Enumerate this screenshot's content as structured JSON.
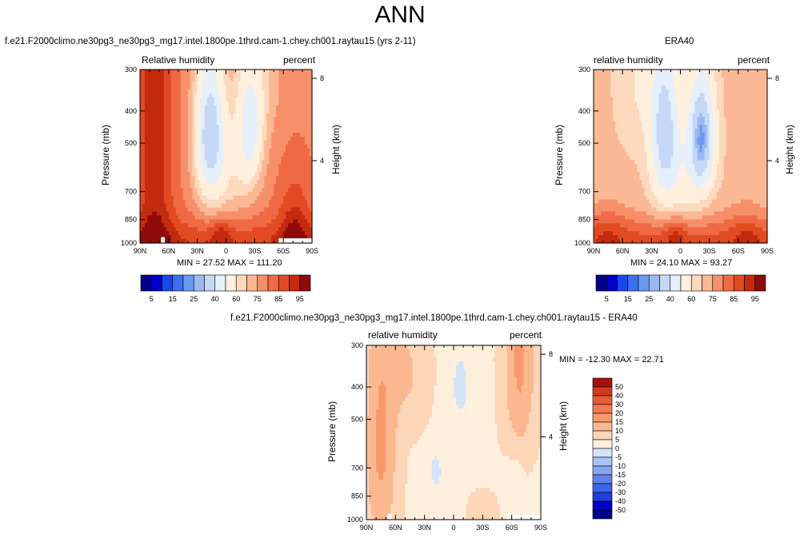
{
  "title": "ANN",
  "colors": {
    "abs_levels": [
      "#00008b",
      "#0000c8",
      "#1a48e8",
      "#3c6ff0",
      "#6d98f0",
      "#9ab9f0",
      "#c5d8f5",
      "#e6f0fa",
      "#fff0de",
      "#fdd9bd",
      "#fbb895",
      "#f7906a",
      "#ef6a44",
      "#e24a22",
      "#c42a0e",
      "#8f0b0b"
    ],
    "diff_levels": [
      "#00008b",
      "#0000c8",
      "#1e3fe0",
      "#3d63e8",
      "#5e82ee",
      "#86a6f2",
      "#aac3f5",
      "#d4e4f9",
      "#fff0de",
      "#fdd6b8",
      "#fbb88f",
      "#f8996d",
      "#f37a4e",
      "#e85a31",
      "#d4381b",
      "#a81010",
      "#7a0606"
    ]
  },
  "panels": [
    {
      "case_title": "f.e21.F2000climo.ne30pg3_ne30pg3_mg17.intel.1800pe.1thrd.cam-1.chey.ch001.raytau15 (yrs 2-11)",
      "variable": "Relative humidity",
      "units": "percent",
      "minmax": "MIN =  27.52   MAX = 111.20",
      "ylabel": "Pressure (mb)",
      "y2label": "Height (km)"
    },
    {
      "case_title": "ERA40",
      "variable": "relative humidity",
      "units": "percent",
      "minmax": "MIN =  24.10   MAX =  93.27",
      "ylabel": "Pressure (mb)",
      "y2label": "Height (km)"
    },
    {
      "case_title": "f.e21.F2000climo.ne30pg3_ne30pg3_mg17.intel.1800pe.1thrd.cam-1.chey.ch001.raytau15 - ERA40",
      "variable": "relative humidity",
      "units": "percent",
      "minmax": "MIN = -12.30   MAX =  22.71",
      "ylabel": "Pressure (mb)",
      "y2label": "Height (km)"
    }
  ],
  "chart_data": [
    {
      "type": "heatmap",
      "name": "model",
      "x_ticks": [
        "90N",
        "60N",
        "30N",
        "0",
        "30S",
        "60S",
        "90S"
      ],
      "x_values": [
        90,
        60,
        30,
        0,
        -30,
        -60,
        -90
      ],
      "y_ticks": [
        "300",
        "400",
        "500",
        "700",
        "850",
        "1000"
      ],
      "y_values": [
        300,
        400,
        500,
        700,
        850,
        1000
      ],
      "y_scale": "log",
      "y2_ticks": [
        "8",
        "4"
      ],
      "y2_values": [
        8,
        4
      ],
      "min": 27.52,
      "max": 111.2,
      "levels": [
        5,
        10,
        15,
        20,
        25,
        30,
        40,
        50,
        60,
        65,
        70,
        75,
        80,
        85,
        90,
        95
      ],
      "colorbar_labels": [
        "5",
        "15",
        "25",
        "40",
        "60",
        "75",
        "85",
        "95"
      ],
      "colorbar_orientation": "horizontal",
      "grid": false
    },
    {
      "type": "heatmap",
      "name": "obs",
      "x_ticks": [
        "90N",
        "60N",
        "30N",
        "0",
        "30S",
        "60S",
        "90S"
      ],
      "x_values": [
        90,
        60,
        30,
        0,
        -30,
        -60,
        -90
      ],
      "y_ticks": [
        "300",
        "400",
        "500",
        "700",
        "850",
        "1000"
      ],
      "y_values": [
        300,
        400,
        500,
        700,
        850,
        1000
      ],
      "y_scale": "log",
      "y2_ticks": [
        "8",
        "4"
      ],
      "y2_values": [
        8,
        4
      ],
      "min": 24.1,
      "max": 93.27,
      "levels": [
        5,
        10,
        15,
        20,
        25,
        30,
        40,
        50,
        60,
        65,
        70,
        75,
        80,
        85,
        90,
        95
      ],
      "colorbar_labels": [
        "5",
        "15",
        "25",
        "40",
        "60",
        "75",
        "85",
        "95"
      ],
      "colorbar_orientation": "horizontal",
      "grid": false
    },
    {
      "type": "heatmap",
      "name": "diff",
      "x_ticks": [
        "90N",
        "60N",
        "30N",
        "0",
        "30S",
        "60S",
        "90S"
      ],
      "x_values": [
        90,
        60,
        30,
        0,
        -30,
        -60,
        -90
      ],
      "y_ticks": [
        "300",
        "400",
        "500",
        "700",
        "850",
        "1000"
      ],
      "y_values": [
        300,
        400,
        500,
        700,
        850,
        1000
      ],
      "y_scale": "log",
      "y2_ticks": [
        "8",
        "4"
      ],
      "y2_values": [
        8,
        4
      ],
      "min": -12.3,
      "max": 22.71,
      "levels": [
        -50,
        -40,
        -30,
        -20,
        -15,
        -10,
        -5,
        0,
        5,
        10,
        15,
        20,
        30,
        40,
        50
      ],
      "colorbar_labels": [
        "50",
        "40",
        "30",
        "20",
        "15",
        "10",
        "5",
        "0",
        "-5",
        "-10",
        "-15",
        "-20",
        "-30",
        "-40",
        "-50"
      ],
      "colorbar_orientation": "vertical",
      "grid": false
    }
  ]
}
